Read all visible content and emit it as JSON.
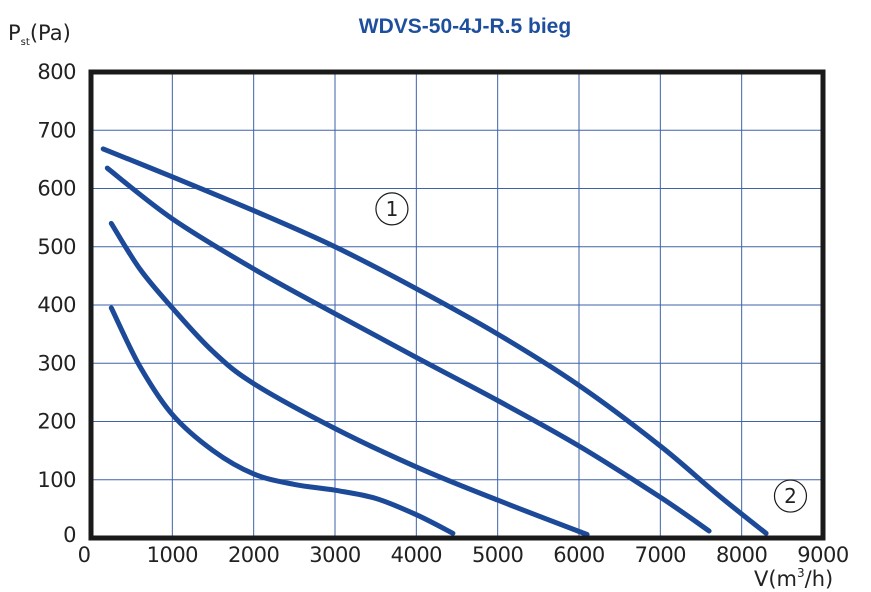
{
  "chart_data": {
    "type": "line",
    "title": "WDVS-50-4J-R.5 bieg",
    "ylabel_main": "P",
    "ylabel_sub": "st",
    "ylabel_unit": "(Pa)",
    "xlabel_main": "V(m",
    "xlabel_sup": "3",
    "xlabel_unit": "/h)",
    "xlim": [
      0,
      9000
    ],
    "ylim": [
      0,
      800
    ],
    "x_ticks": [
      "0",
      "1000",
      "2000",
      "3000",
      "4000",
      "5000",
      "6000",
      "7000",
      "8000",
      "9000"
    ],
    "y_ticks": [
      "0",
      "100",
      "200",
      "300",
      "400",
      "500",
      "600",
      "700",
      "800"
    ],
    "grid": true,
    "annotations": [
      "1",
      "2"
    ],
    "colors": {
      "curve": "#1c4a98",
      "grid": "#3e63a8",
      "title": "#1d4f9c"
    },
    "series": [
      {
        "x": [
          150,
          1000,
          2000,
          3000,
          4000,
          5000,
          6000,
          7000,
          7700,
          8300
        ],
        "y": [
          668,
          620,
          562,
          500,
          428,
          350,
          262,
          158,
          75,
          8
        ]
      },
      {
        "x": [
          200,
          1000,
          2000,
          3000,
          4000,
          5000,
          6000,
          7000,
          7600
        ],
        "y": [
          635,
          548,
          462,
          385,
          310,
          236,
          158,
          70,
          12
        ]
      },
      {
        "x": [
          250,
          600,
          1000,
          1500,
          2000,
          3000,
          4000,
          5000,
          6100
        ],
        "y": [
          540,
          462,
          395,
          320,
          265,
          188,
          122,
          65,
          6
        ]
      },
      {
        "x": [
          250,
          600,
          1000,
          1500,
          2000,
          2500,
          3000,
          3500,
          4000,
          4450
        ],
        "y": [
          395,
          295,
          212,
          150,
          110,
          92,
          82,
          68,
          40,
          8
        ]
      }
    ]
  }
}
